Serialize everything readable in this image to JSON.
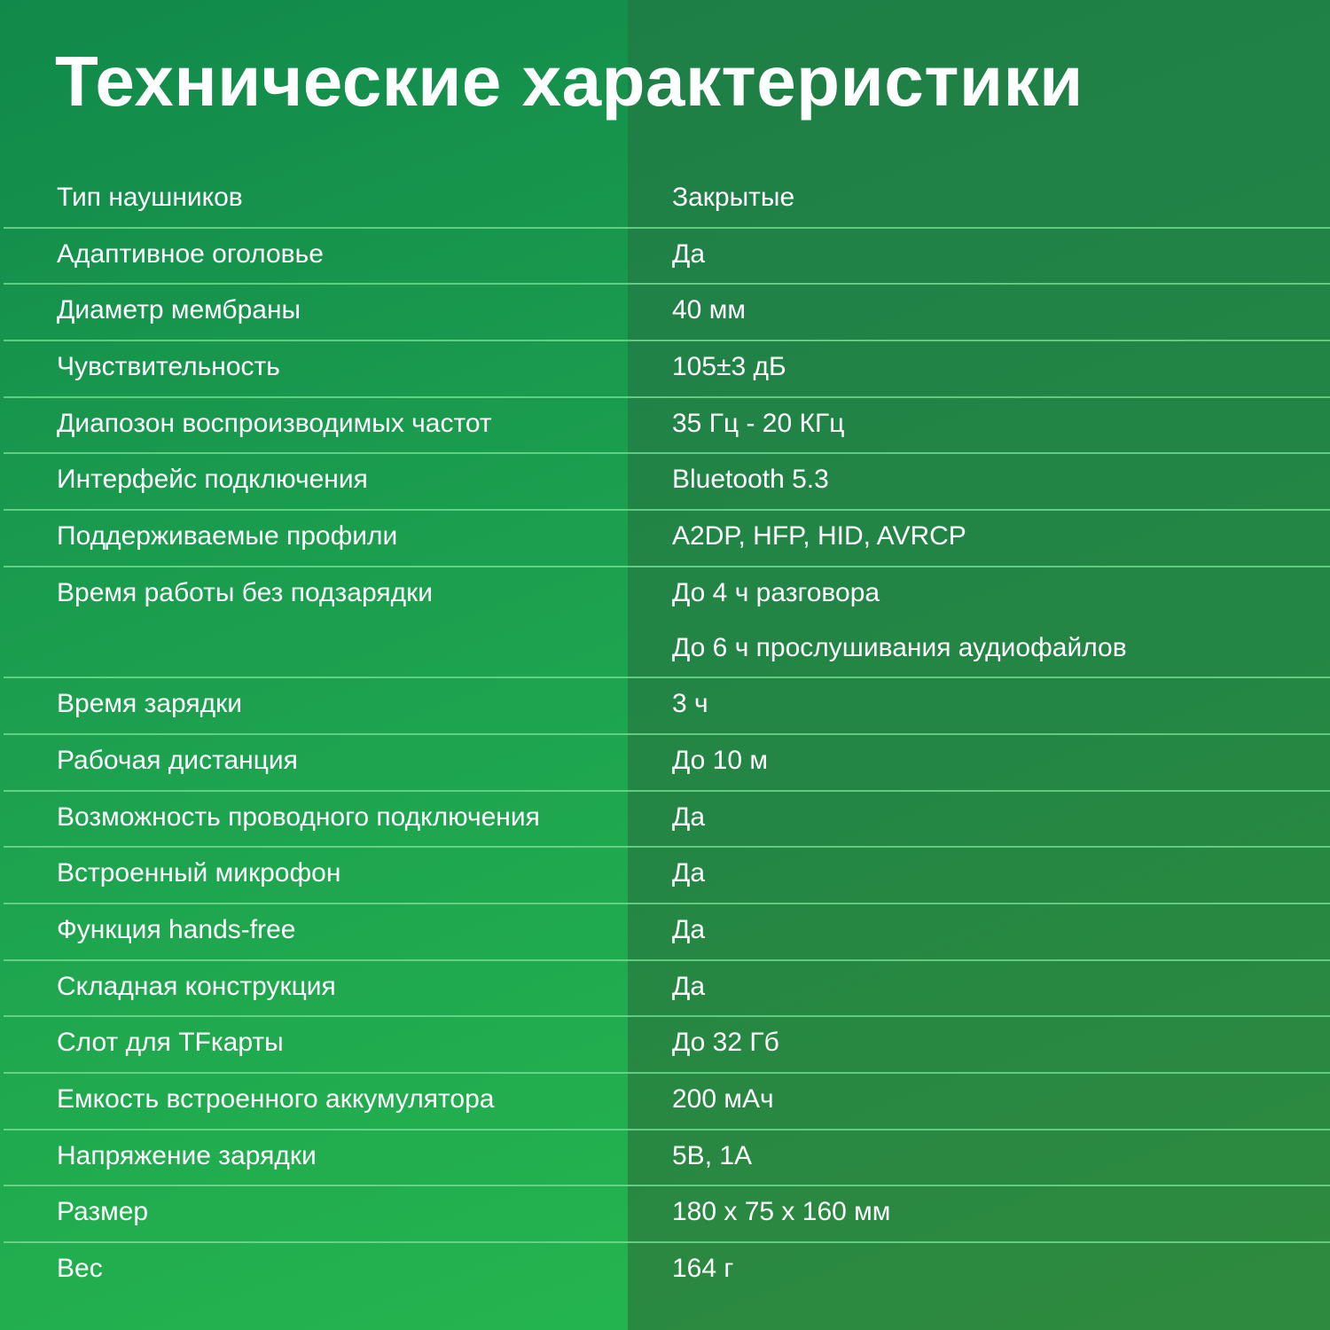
{
  "title": "Технические характеристики",
  "colors": {
    "left_bg": "#1c9f4f",
    "right_bg": "#238645",
    "divider": "#78e196",
    "text": "#ffffff"
  },
  "specs": [
    {
      "label": "Тип  наушников",
      "values": [
        "Закрытые"
      ]
    },
    {
      "label": "Адаптивное оголовье",
      "values": [
        "Да"
      ]
    },
    {
      "label": "Диаметр мембраны",
      "values": [
        "40 мм"
      ]
    },
    {
      "label": "Чувствительность",
      "values": [
        "105±3 дБ"
      ]
    },
    {
      "label": "Диапозон воспроизводимых частот",
      "values": [
        "35 Гц - 20 КГц"
      ]
    },
    {
      "label": "Интерфейс подключения",
      "values": [
        "Bluetooth 5.3"
      ]
    },
    {
      "label": "Поддерживаемые профили",
      "values": [
        "A2DP, HFP,  HID, AVRCP"
      ]
    },
    {
      "label": "Время работы без подзарядки",
      "values": [
        "До 4 ч разговора",
        "До 6 ч прослушивания аудиофайлов"
      ]
    },
    {
      "label": "Время зарядки",
      "values": [
        "3 ч"
      ]
    },
    {
      "label": "Рабочая дистанция",
      "values": [
        "До 10 м"
      ]
    },
    {
      "label": "Возможность проводного подключения",
      "values": [
        "Да"
      ]
    },
    {
      "label": "Встроенный микрофон",
      "values": [
        "Да"
      ]
    },
    {
      "label": "Функция hands-free",
      "values": [
        "Да"
      ]
    },
    {
      "label": "Складная конструкция",
      "values": [
        "Да"
      ]
    },
    {
      "label": "Слот для TFкарты",
      "values": [
        "До 32 Гб"
      ]
    },
    {
      "label": "Емкость встроенного аккумулятора",
      "values": [
        "200 мАч"
      ]
    },
    {
      "label": "Напряжение зарядки",
      "values": [
        "5В, 1А"
      ]
    },
    {
      "label": "Размер",
      "values": [
        "180 x 75 x 160 мм"
      ]
    },
    {
      "label": "Вес",
      "values": [
        "164 г"
      ]
    }
  ]
}
